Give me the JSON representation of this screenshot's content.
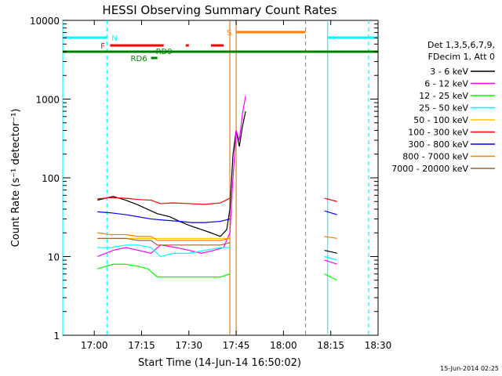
{
  "chart_data": {
    "type": "line",
    "title": "HESSI Observing Summary Count Rates",
    "xlabel": "Start Time (14-Jun-14 16:50:02)",
    "ylabel": "Count Rate (s⁻¹ detector⁻¹)",
    "xlim": [
      "16:50",
      "18:30"
    ],
    "ylim": [
      1,
      10000
    ],
    "yscale": "log",
    "grid": false,
    "legend_position": "right",
    "x_ticks": [
      "17:00",
      "17:15",
      "17:30",
      "17:45",
      "18:00",
      "18:15",
      "18:30"
    ],
    "y_ticks": [
      "1",
      "10",
      "100",
      "1000",
      "10000"
    ],
    "legend_header": [
      "Det 1,3,5,6,7,9,",
      "FDecim 1, Att 0"
    ],
    "timestamp": "15-Jun-2014 02:25",
    "colors": {
      "axis": "#000000",
      "night": "#00ffff",
      "saa": "#ff8000",
      "flare": "#ff0000",
      "decim": "#008000",
      "vline_orange": "#e08020"
    },
    "series": [
      {
        "name": "3 - 6 keV",
        "color": "#000000",
        "points": [
          [
            "17:01",
            52
          ],
          [
            "17:06",
            58
          ],
          [
            "17:10",
            52
          ],
          [
            "17:14",
            45
          ],
          [
            "17:18",
            38
          ],
          [
            "17:20",
            35
          ],
          [
            "17:24",
            32
          ],
          [
            "17:27",
            28
          ],
          [
            "17:30",
            25
          ],
          [
            "17:34",
            22
          ],
          [
            "17:37",
            20
          ],
          [
            "17:40",
            18
          ],
          [
            "17:42",
            22
          ],
          [
            "17:43",
            40
          ],
          [
            "17:44",
            200
          ],
          [
            "17:45",
            400
          ],
          [
            "17:46",
            250
          ],
          [
            "17:47",
            450
          ],
          [
            "17:48",
            700
          ]
        ]
      },
      {
        "name": "6 - 12 keV",
        "color": "#ff00ff",
        "points": [
          [
            "17:01",
            10
          ],
          [
            "17:06",
            12
          ],
          [
            "17:10",
            13
          ],
          [
            "17:14",
            12
          ],
          [
            "17:18",
            11
          ],
          [
            "17:21",
            14
          ],
          [
            "17:26",
            13
          ],
          [
            "17:30",
            12
          ],
          [
            "17:34",
            11
          ],
          [
            "17:38",
            12
          ],
          [
            "17:41",
            13
          ],
          [
            "17:43",
            20
          ],
          [
            "17:44",
            100
          ],
          [
            "17:45",
            400
          ],
          [
            "17:46",
            300
          ],
          [
            "17:47",
            650
          ],
          [
            "17:48",
            1100
          ]
        ]
      },
      {
        "name": "12 - 25 keV",
        "color": "#00ff00",
        "points": [
          [
            "17:01",
            7
          ],
          [
            "17:06",
            8
          ],
          [
            "17:10",
            8
          ],
          [
            "17:14",
            7.5
          ],
          [
            "17:17",
            7
          ],
          [
            "17:20",
            5.5
          ],
          [
            "17:25",
            5.5
          ],
          [
            "17:30",
            5.5
          ],
          [
            "17:35",
            5.5
          ],
          [
            "17:40",
            5.5
          ],
          [
            "17:43",
            6
          ]
        ]
      },
      {
        "name": "25 - 50 keV",
        "color": "#00ffff",
        "points": [
          [
            "17:01",
            13
          ],
          [
            "17:05",
            13
          ],
          [
            "17:10",
            14
          ],
          [
            "17:14",
            14
          ],
          [
            "17:18",
            13
          ],
          [
            "17:21",
            10
          ],
          [
            "17:25",
            11
          ],
          [
            "17:30",
            11
          ],
          [
            "17:35",
            12
          ],
          [
            "17:40",
            13
          ],
          [
            "17:43",
            13
          ]
        ]
      },
      {
        "name": "50 - 100 keV",
        "color": "#ffcc00",
        "points": [
          [
            "17:01",
            17
          ],
          [
            "17:43",
            17
          ]
        ]
      },
      {
        "name": "100 - 300 keV",
        "color": "#ff0000",
        "points": [
          [
            "17:01",
            54
          ],
          [
            "17:05",
            56
          ],
          [
            "17:10",
            55
          ],
          [
            "17:14",
            53
          ],
          [
            "17:18",
            52
          ],
          [
            "17:21",
            47
          ],
          [
            "17:25",
            48
          ],
          [
            "17:30",
            47
          ],
          [
            "17:35",
            46
          ],
          [
            "17:40",
            48
          ],
          [
            "17:43",
            55
          ]
        ]
      },
      {
        "name": "300 - 800 keV",
        "color": "#0000ff",
        "points": [
          [
            "17:01",
            37
          ],
          [
            "17:05",
            36
          ],
          [
            "17:10",
            34
          ],
          [
            "17:14",
            32
          ],
          [
            "17:18",
            30
          ],
          [
            "17:22",
            29
          ],
          [
            "17:27",
            28
          ],
          [
            "17:31",
            27
          ],
          [
            "17:35",
            27
          ],
          [
            "17:40",
            28
          ],
          [
            "17:43",
            30
          ]
        ]
      },
      {
        "name": "800 - 7000 keV",
        "color": "#ff8000",
        "points": [
          [
            "17:01",
            20
          ],
          [
            "17:05",
            19
          ],
          [
            "17:10",
            19
          ],
          [
            "17:14",
            18
          ],
          [
            "17:18",
            18
          ],
          [
            "17:20",
            16
          ],
          [
            "17:25",
            16
          ],
          [
            "17:30",
            16
          ],
          [
            "17:35",
            16
          ],
          [
            "17:40",
            16
          ],
          [
            "17:43",
            17
          ]
        ]
      },
      {
        "name": "7000 - 20000 keV",
        "color": "#996633",
        "points": [
          [
            "17:01",
            17
          ],
          [
            "17:05",
            17
          ],
          [
            "17:10",
            17
          ],
          [
            "17:14",
            16
          ],
          [
            "17:18",
            16
          ],
          [
            "17:20",
            14
          ],
          [
            "17:25",
            14
          ],
          [
            "17:30",
            14
          ],
          [
            "17:35",
            14
          ],
          [
            "17:40",
            14
          ],
          [
            "17:43",
            15
          ]
        ]
      }
    ],
    "series_after": [
      {
        "name": "3 - 6 keV",
        "color": "#000000",
        "points": [
          [
            "18:13",
            12
          ],
          [
            "18:17",
            11
          ]
        ]
      },
      {
        "name": "6 - 12 keV",
        "color": "#ff00ff",
        "points": [
          [
            "18:13",
            9
          ],
          [
            "18:17",
            8
          ]
        ]
      },
      {
        "name": "12 - 25 keV",
        "color": "#00ff00",
        "points": [
          [
            "18:13",
            6
          ],
          [
            "18:17",
            5
          ]
        ]
      },
      {
        "name": "25 - 50 keV",
        "color": "#00ffff",
        "points": [
          [
            "18:13",
            10
          ],
          [
            "18:17",
            9
          ]
        ]
      },
      {
        "name": "100 - 300 keV",
        "color": "#ff0000",
        "points": [
          [
            "18:13",
            55
          ],
          [
            "18:17",
            50
          ]
        ]
      },
      {
        "name": "300 - 800 keV",
        "color": "#0000ff",
        "points": [
          [
            "18:13",
            38
          ],
          [
            "18:17",
            34
          ]
        ]
      },
      {
        "name": "800 - 7000 keV",
        "color": "#ff8000",
        "points": [
          [
            "18:13",
            18
          ],
          [
            "18:17",
            17
          ]
        ]
      }
    ],
    "night_bars": [
      [
        "16:50",
        "17:04"
      ],
      [
        "18:14",
        "18:30"
      ]
    ],
    "saa_bar": [
      "17:45",
      "18:07"
    ],
    "flare_bars": [
      [
        "17:05",
        "17:22"
      ],
      [
        "17:29",
        "17:30"
      ],
      [
        "17:37",
        "17:41"
      ]
    ],
    "decim_bar": [
      "16:50",
      "18:30"
    ],
    "decim_short": [
      "17:18",
      "17:20"
    ],
    "bar_labels": {
      "night": "N",
      "saa": "S",
      "flare": "F",
      "rd9": "RD9",
      "rd6": "RD6"
    },
    "vlines": [
      {
        "t": "16:50",
        "color": "#00ffff",
        "dash": false
      },
      {
        "t": "17:04",
        "color": "#00ffff",
        "dash": true
      },
      {
        "t": "17:43",
        "color": "#e08020",
        "dash": false
      },
      {
        "t": "17:45",
        "color": "#e08020",
        "dash": false
      },
      {
        "t": "18:07",
        "color": "#e08020",
        "dash": true
      },
      {
        "t": "18:14",
        "color": "#00ffff",
        "dash": false
      },
      {
        "t": "18:27",
        "color": "#00ffff",
        "dash": true
      }
    ]
  }
}
